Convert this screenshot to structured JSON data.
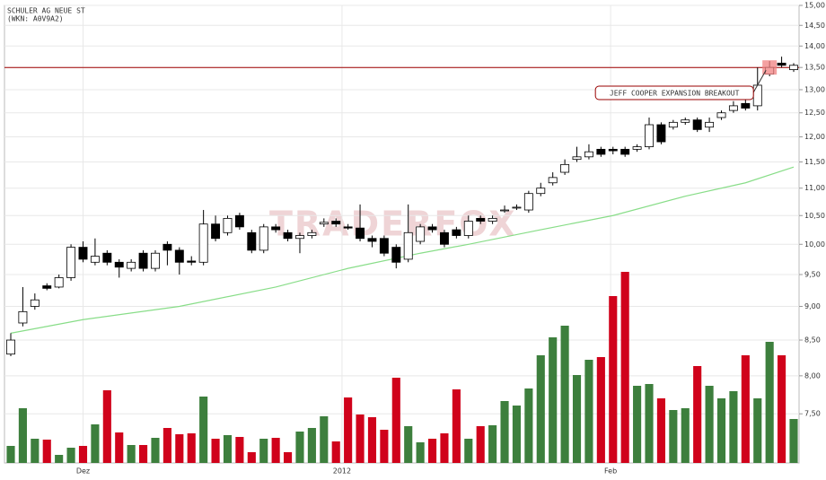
{
  "chart_data": {
    "type": "candlestick",
    "title": "SCHULER AG NEUE ST",
    "subtitle": "(WKN: A0V9A2)",
    "watermark": "TRADERFOX",
    "annotation": "JEFF COOPER EXPANSION BREAKOUT",
    "annotation_index": 63,
    "log_scale": true,
    "grid": true,
    "ylim": [
      6.9,
      15
    ],
    "yticks": [
      {
        "value": 7.5,
        "label": "7,50"
      },
      {
        "value": 8,
        "label": "8,00"
      },
      {
        "value": 8.5,
        "label": "8,50"
      },
      {
        "value": 9,
        "label": "9,00"
      },
      {
        "value": 9.5,
        "label": "9,50"
      },
      {
        "value": 10,
        "label": "10,00"
      },
      {
        "value": 10.5,
        "label": "10,50"
      },
      {
        "value": 11,
        "label": "11,00"
      },
      {
        "value": 11.5,
        "label": "11,50"
      },
      {
        "value": 12,
        "label": "12,00"
      },
      {
        "value": 12.5,
        "label": "12,50"
      },
      {
        "value": 13,
        "label": "13,00"
      },
      {
        "value": 13.5,
        "label": "13,50"
      },
      {
        "value": 14,
        "label": "14,00"
      },
      {
        "value": 14.5,
        "label": "14,50"
      },
      {
        "value": 15,
        "label": "15,00"
      }
    ],
    "xticks": [
      {
        "value": 6,
        "label": "Dez"
      },
      {
        "value": 27.5,
        "label": "2012"
      },
      {
        "value": 49.8,
        "label": "Feb"
      }
    ],
    "hline": 13.5,
    "hline_color": "#a00000",
    "up_color": "#3d7f3d",
    "down_color": "#d0021b",
    "ma_color": "#88dd88",
    "open": [
      8.3,
      8.75,
      9.0,
      9.32,
      9.3,
      9.45,
      9.95,
      9.7,
      9.85,
      9.7,
      9.6,
      9.85,
      9.6,
      10.0,
      9.9,
      9.72,
      9.7,
      10.35,
      10.2,
      10.5,
      10.2,
      9.9,
      10.3,
      10.2,
      10.1,
      10.15,
      10.35,
      10.4,
      10.3,
      10.28,
      10.1,
      10.1,
      9.95,
      9.75,
      10.05,
      10.3,
      10.2,
      10.25,
      10.15,
      10.45,
      10.4,
      10.6,
      10.65,
      10.6,
      10.9,
      11.1,
      11.3,
      11.55,
      11.6,
      11.75,
      11.75,
      11.75,
      11.75,
      11.8,
      12.25,
      12.2,
      12.3,
      12.35,
      12.2,
      12.4,
      12.55,
      12.7,
      12.65,
      13.35,
      13.6,
      13.45
    ],
    "high": [
      8.6,
      9.3,
      9.2,
      9.36,
      9.5,
      10.0,
      10.05,
      10.1,
      9.9,
      9.75,
      9.75,
      9.9,
      9.9,
      10.05,
      9.95,
      9.8,
      10.6,
      10.5,
      10.5,
      10.55,
      10.25,
      10.35,
      10.35,
      10.25,
      10.2,
      10.25,
      10.45,
      10.45,
      10.35,
      10.7,
      10.15,
      10.15,
      10.0,
      10.7,
      10.35,
      10.35,
      10.25,
      10.3,
      10.5,
      10.5,
      10.5,
      10.68,
      10.7,
      10.95,
      11.1,
      11.3,
      11.55,
      11.8,
      11.85,
      11.8,
      11.8,
      11.8,
      11.85,
      12.4,
      12.3,
      12.35,
      12.4,
      12.4,
      12.4,
      12.55,
      12.75,
      12.8,
      13.5,
      13.65,
      13.75,
      13.6
    ],
    "low": [
      8.27,
      8.7,
      8.95,
      9.25,
      9.28,
      9.4,
      9.7,
      9.65,
      9.65,
      9.45,
      9.55,
      9.55,
      9.55,
      9.65,
      9.5,
      9.65,
      9.65,
      10.05,
      10.15,
      10.25,
      9.85,
      9.85,
      10.2,
      10.05,
      9.85,
      10.1,
      10.3,
      10.3,
      10.25,
      10.05,
      9.95,
      9.8,
      9.6,
      9.7,
      10.0,
      10.2,
      9.95,
      10.1,
      10.1,
      10.35,
      10.35,
      10.55,
      10.6,
      10.55,
      10.85,
      11.05,
      11.25,
      11.5,
      11.55,
      11.6,
      11.65,
      11.6,
      11.7,
      11.75,
      11.85,
      12.15,
      12.25,
      12.1,
      12.1,
      12.35,
      12.5,
      12.55,
      12.55,
      13.3,
      13.5,
      13.4
    ],
    "close": [
      8.5,
      8.92,
      9.1,
      9.28,
      9.45,
      9.95,
      9.75,
      9.8,
      9.7,
      9.62,
      9.7,
      9.6,
      9.85,
      9.9,
      9.7,
      9.7,
      10.35,
      10.1,
      10.45,
      10.3,
      9.9,
      10.3,
      10.25,
      10.1,
      10.15,
      10.2,
      10.38,
      10.35,
      10.28,
      10.1,
      10.05,
      9.85,
      9.7,
      10.2,
      10.3,
      10.25,
      10.0,
      10.15,
      10.4,
      10.4,
      10.45,
      10.6,
      10.65,
      10.9,
      11.0,
      11.2,
      11.45,
      11.6,
      11.7,
      11.65,
      11.72,
      11.65,
      11.8,
      12.25,
      11.9,
      12.3,
      12.35,
      12.15,
      12.3,
      12.5,
      12.65,
      12.6,
      13.1,
      13.5,
      13.55,
      13.55
    ],
    "volume": [
      19,
      61,
      27,
      26,
      9,
      17,
      19,
      43,
      81,
      34,
      20,
      20,
      28,
      39,
      32,
      33,
      74,
      27,
      31,
      29,
      12,
      27,
      28,
      12,
      35,
      39,
      52,
      24,
      73,
      54,
      51,
      37,
      95,
      41,
      23,
      27,
      33,
      82,
      27,
      41,
      42,
      69,
      64,
      83,
      120,
      140,
      153,
      98,
      115,
      118,
      186,
      213,
      86,
      88,
      72,
      59,
      61,
      108,
      86,
      72,
      80,
      120,
      72,
      135,
      120,
      49
    ],
    "ma": {
      "x": [
        0,
        6,
        14,
        22,
        28,
        34,
        38,
        44,
        50,
        56,
        61,
        65
      ],
      "values": [
        8.6,
        8.8,
        9.0,
        9.3,
        9.6,
        9.85,
        10.0,
        10.25,
        10.5,
        10.85,
        11.1,
        11.4
      ]
    }
  }
}
